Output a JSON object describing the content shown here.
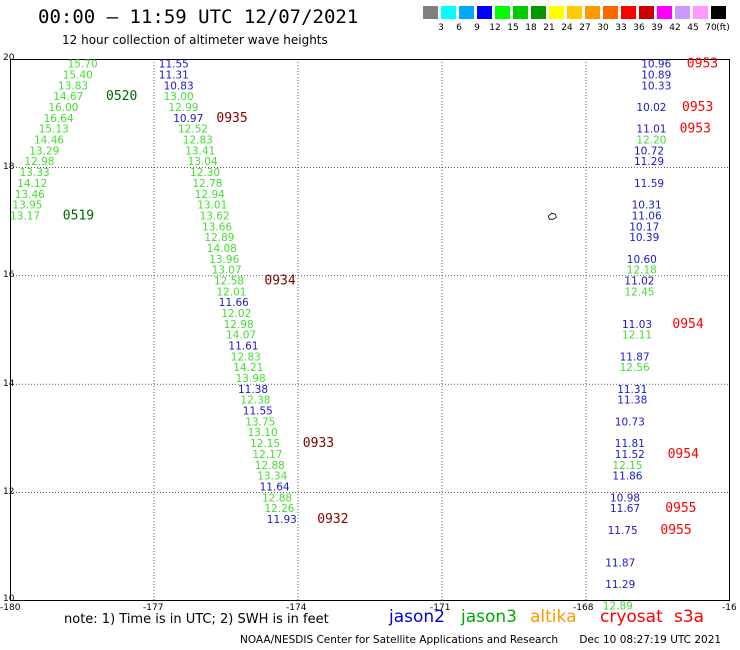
{
  "title": "00:00 – 11:59 UTC 12/07/2021",
  "subtitle": "12 hour collection of altimeter wave heights",
  "colorbar": {
    "unit": "(ft)",
    "swatches": [
      "#808080",
      "#00ffff",
      "#00aaff",
      "#0000ff",
      "#00ff00",
      "#00cc00",
      "#009900",
      "#ffff00",
      "#ffcc00",
      "#ff9900",
      "#ff6600",
      "#ff0000",
      "#cc0000",
      "#ff00ff",
      "#cc99ff",
      "#ff99ff",
      "#000000"
    ],
    "labels": [
      "3",
      "6",
      "9",
      "12",
      "15",
      "18",
      "21",
      "24",
      "27",
      "30",
      "33",
      "36",
      "39",
      "42",
      "45",
      "70"
    ]
  },
  "axes": {
    "x_ticks": [
      "-180",
      "-177",
      "-174",
      "-171",
      "-168",
      "-16"
    ],
    "y_ticks": [
      "20",
      "18",
      "16",
      "14",
      "12",
      "10"
    ]
  },
  "note": "note: 1) Time is in UTC; 2) SWH is in feet",
  "satellites": [
    {
      "name": "jason2",
      "color": "#0000dd"
    },
    {
      "name": "jason3",
      "color": "#00aa00"
    },
    {
      "name": "altika",
      "color": "#ff9900"
    },
    {
      "name": "cryosat",
      "color": "#ff0000"
    },
    {
      "name": "s3a",
      "color": "#ff0000"
    }
  ],
  "credit": {
    "org": "NOAA/NESDIS Center for Satellite Applications and Research",
    "stamp": "Dec 10 08:27:19 UTC 2021"
  },
  "tracks": [
    {
      "sat": "jason3",
      "labels": [
        {
          "t": "15.70",
          "lon": -178.8,
          "lat": 19.84
        },
        {
          "t": "15.40",
          "lon": -178.9,
          "lat": 19.64
        },
        {
          "t": "13.83",
          "lon": -179.0,
          "lat": 19.44
        },
        {
          "t": "14.67",
          "lon": -179.1,
          "lat": 19.24
        },
        {
          "t": "16.00",
          "lon": -179.2,
          "lat": 19.04
        },
        {
          "t": "16.64",
          "lon": -179.3,
          "lat": 18.84
        },
        {
          "t": "15.13",
          "lon": -179.4,
          "lat": 18.64
        },
        {
          "t": "14.46",
          "lon": -179.5,
          "lat": 18.44
        },
        {
          "t": "13.29",
          "lon": -179.6,
          "lat": 18.24
        },
        {
          "t": "12.98",
          "lon": -179.7,
          "lat": 18.04
        },
        {
          "t": "13.33",
          "lon": -179.8,
          "lat": 17.84
        },
        {
          "t": "14.12",
          "lon": -179.85,
          "lat": 17.64
        },
        {
          "t": "13.46",
          "lon": -179.9,
          "lat": 17.44
        },
        {
          "t": "13.95",
          "lon": -179.95,
          "lat": 17.24
        },
        {
          "t": "13.17",
          "lon": -180.0,
          "lat": 17.04
        }
      ],
      "times": [
        {
          "t": "0520",
          "lon": -178.0,
          "lat": 19.24
        },
        {
          "t": "0519",
          "lon": -178.9,
          "lat": 17.04
        }
      ]
    },
    {
      "sat": "mixed",
      "labels": [
        {
          "t": "11.55",
          "c": "b",
          "lon": -176.9,
          "lat": 19.84
        },
        {
          "t": "11.31",
          "c": "b",
          "lon": -176.9,
          "lat": 19.64
        },
        {
          "t": "10.83",
          "c": "b",
          "lon": -176.8,
          "lat": 19.44
        },
        {
          "t": "13.00",
          "c": "g",
          "lon": -176.8,
          "lat": 19.24
        },
        {
          "t": "12.99",
          "c": "g",
          "lon": -176.7,
          "lat": 19.04
        },
        {
          "t": "10.97",
          "c": "b",
          "lon": -176.6,
          "lat": 18.84
        },
        {
          "t": "12.52",
          "c": "g",
          "lon": -176.5,
          "lat": 18.64
        },
        {
          "t": "12.83",
          "c": "g",
          "lon": -176.4,
          "lat": 18.44
        },
        {
          "t": "13.41",
          "c": "g",
          "lon": -176.35,
          "lat": 18.24
        },
        {
          "t": "13.04",
          "c": "g",
          "lon": -176.3,
          "lat": 18.04
        },
        {
          "t": "12.30",
          "c": "g",
          "lon": -176.25,
          "lat": 17.84
        },
        {
          "t": "12.78",
          "c": "g",
          "lon": -176.2,
          "lat": 17.64
        },
        {
          "t": "12.94",
          "c": "g",
          "lon": -176.15,
          "lat": 17.44
        },
        {
          "t": "13.01",
          "c": "g",
          "lon": -176.1,
          "lat": 17.24
        },
        {
          "t": "13.62",
          "c": "g",
          "lon": -176.05,
          "lat": 17.04
        },
        {
          "t": "13.66",
          "c": "g",
          "lon": -176.0,
          "lat": 16.84
        },
        {
          "t": "12.89",
          "c": "g",
          "lon": -175.95,
          "lat": 16.64
        },
        {
          "t": "14.08",
          "c": "g",
          "lon": -175.9,
          "lat": 16.44
        },
        {
          "t": "13.96",
          "c": "g",
          "lon": -175.85,
          "lat": 16.24
        },
        {
          "t": "13.07",
          "c": "g",
          "lon": -175.8,
          "lat": 16.04
        },
        {
          "t": "12.58",
          "c": "g",
          "lon": -175.75,
          "lat": 15.84
        },
        {
          "t": "12.01",
          "c": "g",
          "lon": -175.7,
          "lat": 15.64
        },
        {
          "t": "11.66",
          "c": "b",
          "lon": -175.65,
          "lat": 15.44
        },
        {
          "t": "12.02",
          "c": "g",
          "lon": -175.6,
          "lat": 15.24
        },
        {
          "t": "12.98",
          "c": "g",
          "lon": -175.55,
          "lat": 15.04
        },
        {
          "t": "14.07",
          "c": "g",
          "lon": -175.5,
          "lat": 14.84
        },
        {
          "t": "11.61",
          "c": "b",
          "lon": -175.45,
          "lat": 14.64
        },
        {
          "t": "12.83",
          "c": "g",
          "lon": -175.4,
          "lat": 14.44
        },
        {
          "t": "14.21",
          "c": "g",
          "lon": -175.35,
          "lat": 14.24
        },
        {
          "t": "13.98",
          "c": "g",
          "lon": -175.3,
          "lat": 14.04
        },
        {
          "t": "11.38",
          "c": "b",
          "lon": -175.25,
          "lat": 13.84
        },
        {
          "t": "12.38",
          "c": "g",
          "lon": -175.2,
          "lat": 13.64
        },
        {
          "t": "11.55",
          "c": "b",
          "lon": -175.15,
          "lat": 13.44
        },
        {
          "t": "13.75",
          "c": "g",
          "lon": -175.1,
          "lat": 13.24
        },
        {
          "t": "13.10",
          "c": "g",
          "lon": -175.05,
          "lat": 13.04
        },
        {
          "t": "12.15",
          "c": "g",
          "lon": -175.0,
          "lat": 12.84
        },
        {
          "t": "12.17",
          "c": "g",
          "lon": -174.95,
          "lat": 12.64
        },
        {
          "t": "12.88",
          "c": "g",
          "lon": -174.9,
          "lat": 12.44
        },
        {
          "t": "13.34",
          "c": "g",
          "lon": -174.85,
          "lat": 12.24
        },
        {
          "t": "11.64",
          "c": "b",
          "lon": -174.8,
          "lat": 12.04
        },
        {
          "t": "12.88",
          "c": "g",
          "lon": -174.75,
          "lat": 11.84
        },
        {
          "t": "12.26",
          "c": "g",
          "lon": -174.7,
          "lat": 11.64
        },
        {
          "t": "11.93",
          "c": "b",
          "lon": -174.65,
          "lat": 11.44
        }
      ],
      "times": [
        {
          "t": "0935",
          "lon": -175.7,
          "lat": 18.84
        },
        {
          "t": "0934",
          "lon": -174.7,
          "lat": 15.84
        },
        {
          "t": "0933",
          "lon": -173.9,
          "lat": 12.84
        },
        {
          "t": "0932",
          "lon": -173.6,
          "lat": 11.44
        }
      ]
    },
    {
      "sat": "east",
      "labels": [
        {
          "t": "10.96",
          "c": "b",
          "lon": -166.85,
          "lat": 19.84
        },
        {
          "t": "10.89",
          "c": "b",
          "lon": -166.85,
          "lat": 19.64
        },
        {
          "t": "10.33",
          "c": "b",
          "lon": -166.85,
          "lat": 19.44
        },
        {
          "t": "10.02",
          "c": "b",
          "lon": -166.95,
          "lat": 19.04
        },
        {
          "t": "11.01",
          "c": "b",
          "lon": -166.95,
          "lat": 18.64
        },
        {
          "t": "12.20",
          "c": "g",
          "lon": -166.95,
          "lat": 18.44
        },
        {
          "t": "10.72",
          "c": "b",
          "lon": -167.0,
          "lat": 18.24
        },
        {
          "t": "11.29",
          "c": "b",
          "lon": -167.0,
          "lat": 18.04
        },
        {
          "t": "11.59",
          "c": "b",
          "lon": -167.0,
          "lat": 17.64
        },
        {
          "t": "10.31",
          "c": "b",
          "lon": -167.05,
          "lat": 17.24
        },
        {
          "t": "11.06",
          "c": "b",
          "lon": -167.05,
          "lat": 17.04
        },
        {
          "t": "10.17",
          "c": "b",
          "lon": -167.1,
          "lat": 16.84
        },
        {
          "t": "10.39",
          "c": "b",
          "lon": -167.1,
          "lat": 16.64
        },
        {
          "t": "10.60",
          "c": "b",
          "lon": -167.15,
          "lat": 16.24
        },
        {
          "t": "12.18",
          "c": "g",
          "lon": -167.15,
          "lat": 16.04
        },
        {
          "t": "11.02",
          "c": "b",
          "lon": -167.2,
          "lat": 15.84
        },
        {
          "t": "12.45",
          "c": "g",
          "lon": -167.2,
          "lat": 15.64
        },
        {
          "t": "11.03",
          "c": "b",
          "lon": -167.25,
          "lat": 15.04
        },
        {
          "t": "12.11",
          "c": "g",
          "lon": -167.25,
          "lat": 14.84
        },
        {
          "t": "11.87",
          "c": "b",
          "lon": -167.3,
          "lat": 14.44
        },
        {
          "t": "12.56",
          "c": "g",
          "lon": -167.3,
          "lat": 14.24
        },
        {
          "t": "11.31",
          "c": "b",
          "lon": -167.35,
          "lat": 13.84
        },
        {
          "t": "11.38",
          "c": "b",
          "lon": -167.35,
          "lat": 13.64
        },
        {
          "t": "10.73",
          "c": "b",
          "lon": -167.4,
          "lat": 13.24
        },
        {
          "t": "11.81",
          "c": "b",
          "lon": -167.4,
          "lat": 12.84
        },
        {
          "t": "11.52",
          "c": "b",
          "lon": -167.4,
          "lat": 12.64
        },
        {
          "t": "12.15",
          "c": "g",
          "lon": -167.45,
          "lat": 12.44
        },
        {
          "t": "11.86",
          "c": "b",
          "lon": -167.45,
          "lat": 12.24
        },
        {
          "t": "10.98",
          "c": "b",
          "lon": -167.5,
          "lat": 11.84
        },
        {
          "t": "11.67",
          "c": "b",
          "lon": -167.5,
          "lat": 11.64
        },
        {
          "t": "11.75",
          "c": "b",
          "lon": -167.55,
          "lat": 11.24
        },
        {
          "t": "11.87",
          "c": "b",
          "lon": -167.6,
          "lat": 10.64
        },
        {
          "t": "11.29",
          "c": "b",
          "lon": -167.6,
          "lat": 10.24
        },
        {
          "t": "12.89",
          "c": "g",
          "lon": -167.65,
          "lat": 9.84
        }
      ],
      "times": [
        {
          "t": "0953",
          "lon": -165.9,
          "lat": 19.84
        },
        {
          "t": "0953",
          "lon": -166.0,
          "lat": 19.04
        },
        {
          "t": "0953",
          "lon": -166.05,
          "lat": 18.64
        },
        {
          "t": "0954",
          "lon": -166.2,
          "lat": 15.04
        },
        {
          "t": "0954",
          "lon": -166.3,
          "lat": 12.64
        },
        {
          "t": "0955",
          "lon": -166.35,
          "lat": 11.64
        },
        {
          "t": "0955",
          "lon": -166.45,
          "lat": 11.24
        }
      ]
    }
  ]
}
